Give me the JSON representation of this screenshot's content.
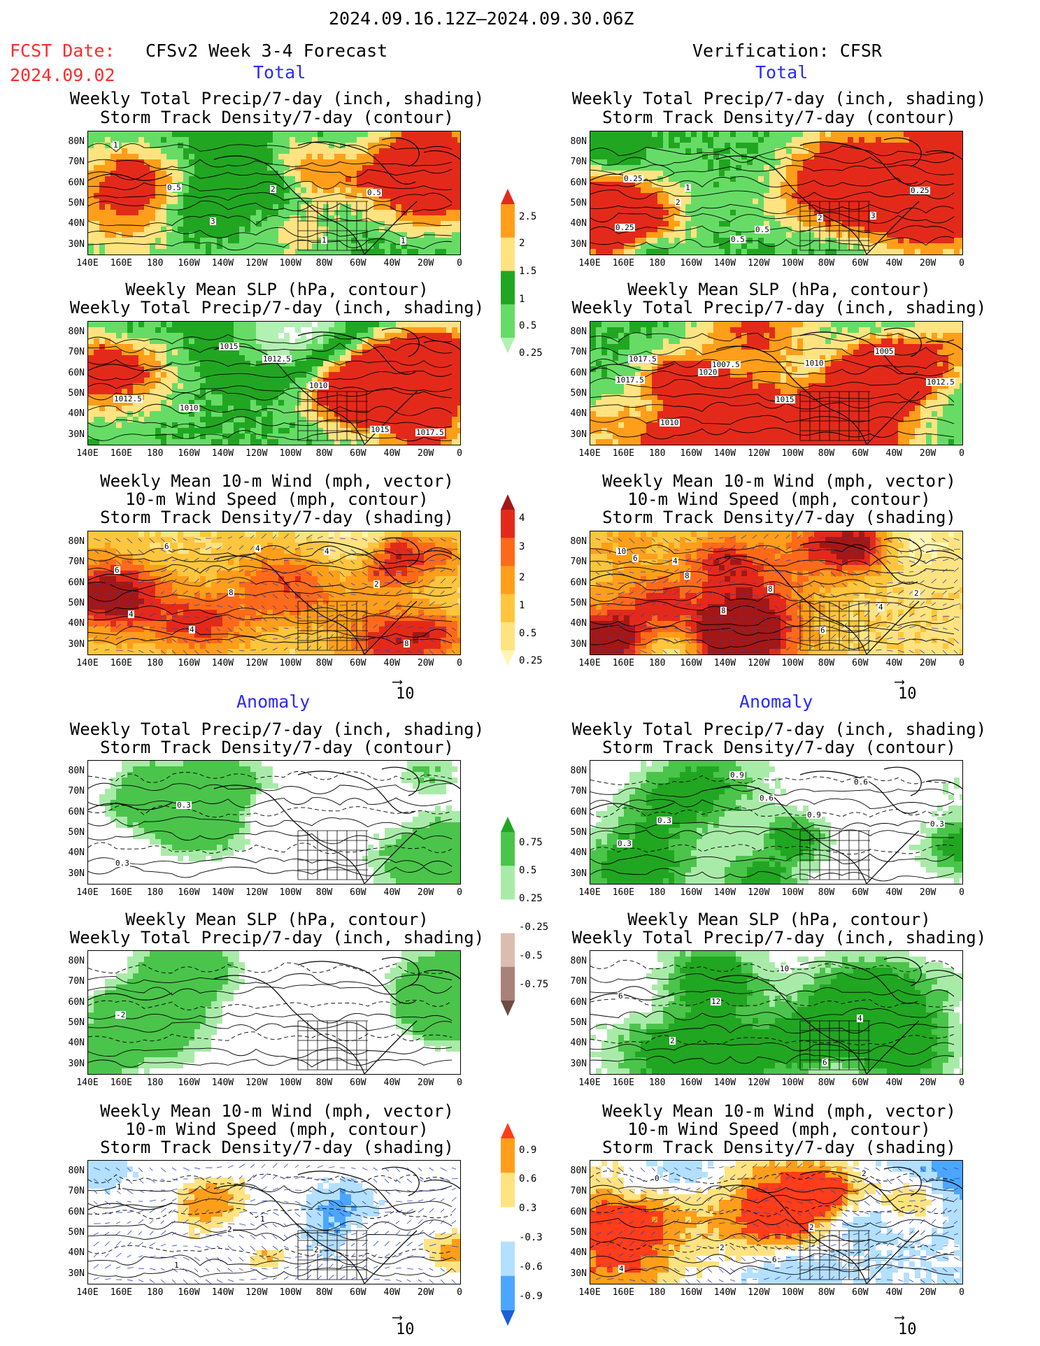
{
  "header": {
    "valid_period": "2024.09.16.12Z—2024.09.30.06Z",
    "fcst_date_label": "FCST Date:",
    "fcst_date_value": "2024.09.02",
    "left_title": "CFSv2 Week 3-4 Forecast",
    "right_title": "Verification: CFSR"
  },
  "sections": {
    "total": "Total",
    "anomaly": "Anomaly"
  },
  "panel_titles": {
    "precip_track": [
      "Weekly Total Precip/7-day (inch, shading)",
      "Storm Track Density/7-day (contour)"
    ],
    "slp_precip": [
      "Weekly Mean SLP (hPa, contour)",
      "Weekly Total Precip/7-day (inch, shading)"
    ],
    "wind_track": [
      "Weekly Mean 10-m Wind (mph, vector)",
      "10-m Wind Speed (mph, contour)",
      "Storm Track Density/7-day (shading)"
    ]
  },
  "axes": {
    "lat_labels": [
      "80N",
      "70N",
      "60N",
      "50N",
      "40N",
      "30N"
    ],
    "lon_labels": [
      "140E",
      "160E",
      "180",
      "160W",
      "140W",
      "120W",
      "100W",
      "80W",
      "60W",
      "40W",
      "20W",
      "0"
    ]
  },
  "vector_reference": "10",
  "colorbars": {
    "precip_total": {
      "labels": [
        "2.5",
        "2",
        "1.5",
        "1",
        "0.5",
        "0.25"
      ],
      "colors": [
        "#e32a1a",
        "#ff9e1a",
        "#ffe380",
        "#21a621",
        "#66dc66",
        "#b3f0b3"
      ]
    },
    "track_total": {
      "labels": [
        "4",
        "3",
        "2",
        "1",
        "0.5",
        "0.25"
      ],
      "colors": [
        "#a31717",
        "#e32a1a",
        "#ff6a1a",
        "#ff9e1a",
        "#ffc53d",
        "#ffe380",
        "#fff6b3"
      ]
    },
    "precip_anom": {
      "labels": [
        "0.75",
        "0.5",
        "0.25",
        "-0.25",
        "-0.5",
        "-0.75"
      ],
      "colors": [
        "#21a621",
        "#4bc44b",
        "#a8eba8",
        "#ffffff",
        "#dbbcb0",
        "#a8817a",
        "#6e4b45"
      ]
    },
    "track_anom": {
      "labels": [
        "0.9",
        "0.6",
        "0.3",
        "-0.3",
        "-0.6",
        "-0.9"
      ],
      "colors": [
        "#ff3d1a",
        "#ff9e1a",
        "#ffe380",
        "#ffffff",
        "#b3e0ff",
        "#4ca6ff",
        "#1a5fd6"
      ]
    }
  },
  "contour_labels": {
    "l1": [
      "1",
      "0.5",
      "3",
      "2",
      "1",
      "0.5",
      "1"
    ],
    "r1": [
      "0.25",
      "2",
      "0.5",
      "0.5",
      "2",
      "3",
      "0.25",
      "0.25",
      "1"
    ],
    "l2": [
      "1012.5",
      "1010",
      "1015",
      "1012.5",
      "1010",
      "1015",
      "1017.5"
    ],
    "r2": [
      "1017.5",
      "1010",
      "1007.5",
      "1015",
      "1010",
      "1005",
      "1012.5",
      "1017.5",
      "1020"
    ],
    "l3": [
      "6",
      "6",
      "8",
      "4",
      "4",
      "2",
      "8",
      "4",
      "4"
    ],
    "r3": [
      "10",
      "4",
      "8",
      "8",
      "6",
      "4",
      "2",
      "6",
      "8"
    ],
    "l4": [
      "0.3",
      "0.3"
    ],
    "r4": [
      "0.3",
      "0.3",
      "0.9",
      "0.6",
      "0.9",
      "0.6",
      "0.3"
    ],
    "l5": [
      "-2"
    ],
    "r5": [
      "6",
      "2",
      "12",
      "10",
      "6",
      "4"
    ],
    "l6": [
      "1",
      "1",
      "2",
      "1",
      "2"
    ],
    "r6": [
      "4",
      "0",
      "2",
      "6",
      "2",
      "2"
    ]
  }
}
